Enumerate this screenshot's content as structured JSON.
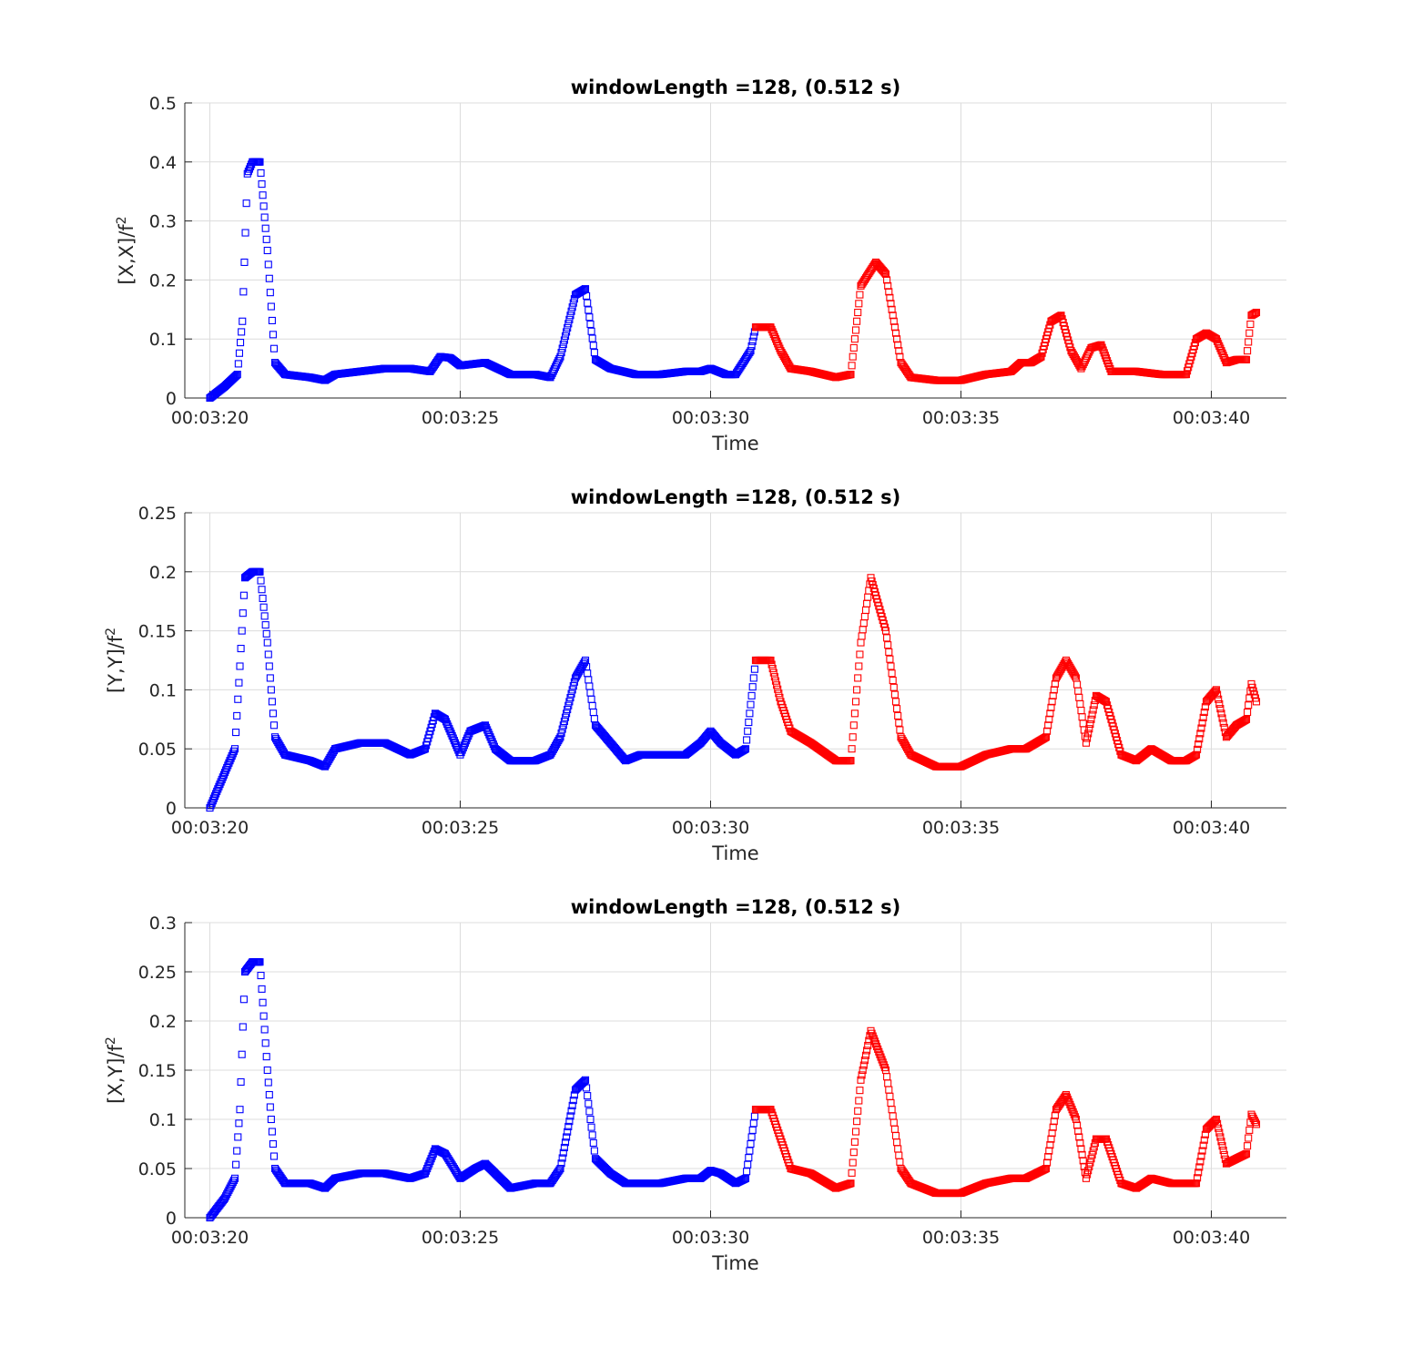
{
  "chart_data": [
    {
      "type": "scatter",
      "title": "windowLength =128, (0.512 s)",
      "xlabel": "Time",
      "ylabel": "[X,X]/f",
      "ylabel_sup": "2",
      "xlim": [
        "00:03:19.5",
        "00:03:41.5"
      ],
      "ylim": [
        0,
        0.5
      ],
      "xticks": [
        "00:03:20",
        "00:03:25",
        "00:03:30",
        "00:03:35",
        "00:03:40"
      ],
      "yticks": [
        "0",
        "0.1",
        "0.2",
        "0.3",
        "0.4",
        "0.5"
      ],
      "grid": true,
      "marker": "square",
      "series": [
        {
          "color": "#0000ff",
          "x": [
            "00:03:20.0",
            "00:03:20.3",
            "00:03:20.55",
            "00:03:20.65",
            "00:03:20.75",
            "00:03:20.85",
            "00:03:21.0",
            "00:03:21.15",
            "00:03:21.3",
            "00:03:21.5",
            "00:03:22.0",
            "00:03:22.3",
            "00:03:22.5",
            "00:03:23.0",
            "00:03:23.5",
            "00:03:24.0",
            "00:03:24.4",
            "00:03:24.6",
            "00:03:24.8",
            "00:03:25.0",
            "00:03:25.5",
            "00:03:26.0",
            "00:03:26.5",
            "00:03:26.8",
            "00:03:27.0",
            "00:03:27.3",
            "00:03:27.5",
            "00:03:27.7",
            "00:03:28.0",
            "00:03:28.5",
            "00:03:29.0",
            "00:03:29.5",
            "00:03:29.8",
            "00:03:30.0",
            "00:03:30.3",
            "00:03:30.5",
            "00:03:30.8",
            "00:03:30.9"
          ],
          "y": [
            0.0,
            0.02,
            0.04,
            0.13,
            0.38,
            0.4,
            0.4,
            0.25,
            0.06,
            0.04,
            0.035,
            0.03,
            0.04,
            0.045,
            0.05,
            0.05,
            0.045,
            0.07,
            0.068,
            0.055,
            0.06,
            0.04,
            0.04,
            0.035,
            0.07,
            0.175,
            0.185,
            0.065,
            0.05,
            0.04,
            0.04,
            0.045,
            0.045,
            0.05,
            0.04,
            0.04,
            0.08,
            0.12
          ]
        },
        {
          "color": "#ff0000",
          "x": [
            "00:03:30.9",
            "00:03:31.2",
            "00:03:31.4",
            "00:03:31.6",
            "00:03:32.0",
            "00:03:32.5",
            "00:03:32.8",
            "00:03:33.0",
            "00:03:33.3",
            "00:03:33.5",
            "00:03:33.8",
            "00:03:34.0",
            "00:03:34.5",
            "00:03:35.0",
            "00:03:35.5",
            "00:03:36.0",
            "00:03:36.2",
            "00:03:36.4",
            "00:03:36.6",
            "00:03:36.8",
            "00:03:37.0",
            "00:03:37.2",
            "00:03:37.4",
            "00:03:37.6",
            "00:03:37.8",
            "00:03:38.0",
            "00:03:38.5",
            "00:03:39.0",
            "00:03:39.5",
            "00:03:39.7",
            "00:03:39.9",
            "00:03:40.1",
            "00:03:40.3",
            "00:03:40.5",
            "00:03:40.7",
            "00:03:40.8",
            "00:03:40.9"
          ],
          "y": [
            0.12,
            0.12,
            0.08,
            0.05,
            0.045,
            0.035,
            0.04,
            0.19,
            0.23,
            0.21,
            0.06,
            0.035,
            0.03,
            0.03,
            0.04,
            0.045,
            0.06,
            0.06,
            0.07,
            0.13,
            0.14,
            0.08,
            0.05,
            0.085,
            0.09,
            0.045,
            0.045,
            0.04,
            0.04,
            0.1,
            0.11,
            0.1,
            0.06,
            0.065,
            0.065,
            0.14,
            0.145
          ]
        }
      ]
    },
    {
      "type": "scatter",
      "title": "windowLength =128, (0.512 s)",
      "xlabel": "Time",
      "ylabel": "[Y,Y]/f",
      "ylabel_sup": "2",
      "xlim": [
        "00:03:19.5",
        "00:03:41.5"
      ],
      "ylim": [
        0,
        0.25
      ],
      "xticks": [
        "00:03:20",
        "00:03:25",
        "00:03:30",
        "00:03:35",
        "00:03:40"
      ],
      "yticks": [
        "0",
        "0.05",
        "0.1",
        "0.15",
        "0.2",
        "0.25"
      ],
      "grid": true,
      "marker": "square",
      "series": [
        {
          "color": "#0000ff",
          "x": [
            "00:03:20.0",
            "00:03:20.3",
            "00:03:20.5",
            "00:03:20.6",
            "00:03:20.7",
            "00:03:20.85",
            "00:03:21.0",
            "00:03:21.15",
            "00:03:21.3",
            "00:03:21.5",
            "00:03:22.0",
            "00:03:22.3",
            "00:03:22.5",
            "00:03:23.0",
            "00:03:23.5",
            "00:03:24.0",
            "00:03:24.3",
            "00:03:24.5",
            "00:03:24.7",
            "00:03:25.0",
            "00:03:25.2",
            "00:03:25.5",
            "00:03:25.7",
            "00:03:26.0",
            "00:03:26.5",
            "00:03:26.8",
            "00:03:27.0",
            "00:03:27.3",
            "00:03:27.5",
            "00:03:27.7",
            "00:03:28.0",
            "00:03:28.3",
            "00:03:28.6",
            "00:03:29.0",
            "00:03:29.5",
            "00:03:29.8",
            "00:03:30.0",
            "00:03:30.2",
            "00:03:30.5",
            "00:03:30.7",
            "00:03:30.9"
          ],
          "y": [
            0.0,
            0.03,
            0.05,
            0.12,
            0.195,
            0.2,
            0.2,
            0.14,
            0.06,
            0.045,
            0.04,
            0.035,
            0.05,
            0.055,
            0.055,
            0.045,
            0.05,
            0.08,
            0.075,
            0.045,
            0.065,
            0.07,
            0.05,
            0.04,
            0.04,
            0.045,
            0.06,
            0.11,
            0.125,
            0.07,
            0.055,
            0.04,
            0.045,
            0.045,
            0.045,
            0.055,
            0.065,
            0.055,
            0.045,
            0.05,
            0.125
          ]
        },
        {
          "color": "#ff0000",
          "x": [
            "00:03:30.9",
            "00:03:31.2",
            "00:03:31.4",
            "00:03:31.6",
            "00:03:32.0",
            "00:03:32.5",
            "00:03:32.8",
            "00:03:33.0",
            "00:03:33.2",
            "00:03:33.5",
            "00:03:33.8",
            "00:03:34.0",
            "00:03:34.5",
            "00:03:35.0",
            "00:03:35.5",
            "00:03:36.0",
            "00:03:36.3",
            "00:03:36.5",
            "00:03:36.7",
            "00:03:36.9",
            "00:03:37.1",
            "00:03:37.3",
            "00:03:37.5",
            "00:03:37.7",
            "00:03:37.9",
            "00:03:38.2",
            "00:03:38.5",
            "00:03:38.8",
            "00:03:39.2",
            "00:03:39.5",
            "00:03:39.7",
            "00:03:39.9",
            "00:03:40.1",
            "00:03:40.3",
            "00:03:40.5",
            "00:03:40.7",
            "00:03:40.8",
            "00:03:40.9"
          ],
          "y": [
            0.125,
            0.125,
            0.09,
            0.065,
            0.055,
            0.04,
            0.04,
            0.14,
            0.195,
            0.15,
            0.06,
            0.045,
            0.035,
            0.035,
            0.045,
            0.05,
            0.05,
            0.055,
            0.06,
            0.11,
            0.125,
            0.11,
            0.055,
            0.095,
            0.09,
            0.045,
            0.04,
            0.05,
            0.04,
            0.04,
            0.045,
            0.09,
            0.1,
            0.06,
            0.07,
            0.075,
            0.105,
            0.09
          ]
        }
      ]
    },
    {
      "type": "scatter",
      "title": "windowLength =128, (0.512 s)",
      "xlabel": "Time",
      "ylabel": "[X,Y]/f",
      "ylabel_sup": "2",
      "xlim": [
        "00:03:19.5",
        "00:03:41.5"
      ],
      "ylim": [
        0,
        0.3
      ],
      "xticks": [
        "00:03:20",
        "00:03:25",
        "00:03:30",
        "00:03:35",
        "00:03:40"
      ],
      "yticks": [
        "0",
        "0.05",
        "0.1",
        "0.15",
        "0.2",
        "0.25",
        "0.3"
      ],
      "grid": true,
      "marker": "square",
      "series": [
        {
          "color": "#0000ff",
          "x": [
            "00:03:20.0",
            "00:03:20.3",
            "00:03:20.5",
            "00:03:20.6",
            "00:03:20.7",
            "00:03:20.85",
            "00:03:21.0",
            "00:03:21.15",
            "00:03:21.3",
            "00:03:21.5",
            "00:03:22.0",
            "00:03:22.3",
            "00:03:22.5",
            "00:03:23.0",
            "00:03:23.5",
            "00:03:24.0",
            "00:03:24.3",
            "00:03:24.5",
            "00:03:24.7",
            "00:03:25.0",
            "00:03:25.3",
            "00:03:25.5",
            "00:03:25.7",
            "00:03:26.0",
            "00:03:26.5",
            "00:03:26.8",
            "00:03:27.0",
            "00:03:27.3",
            "00:03:27.5",
            "00:03:27.7",
            "00:03:28.0",
            "00:03:28.3",
            "00:03:28.6",
            "00:03:29.0",
            "00:03:29.5",
            "00:03:29.8",
            "00:03:30.0",
            "00:03:30.2",
            "00:03:30.5",
            "00:03:30.7",
            "00:03:30.9"
          ],
          "y": [
            0.0,
            0.02,
            0.04,
            0.11,
            0.25,
            0.26,
            0.26,
            0.15,
            0.05,
            0.035,
            0.035,
            0.03,
            0.04,
            0.045,
            0.045,
            0.04,
            0.045,
            0.07,
            0.065,
            0.04,
            0.05,
            0.055,
            0.045,
            0.03,
            0.035,
            0.035,
            0.05,
            0.13,
            0.14,
            0.06,
            0.045,
            0.035,
            0.035,
            0.035,
            0.04,
            0.04,
            0.048,
            0.045,
            0.035,
            0.04,
            0.11
          ]
        },
        {
          "color": "#ff0000",
          "x": [
            "00:03:30.9",
            "00:03:31.2",
            "00:03:31.4",
            "00:03:31.6",
            "00:03:32.0",
            "00:03:32.5",
            "00:03:32.8",
            "00:03:33.0",
            "00:03:33.2",
            "00:03:33.5",
            "00:03:33.8",
            "00:03:34.0",
            "00:03:34.5",
            "00:03:35.0",
            "00:03:35.5",
            "00:03:36.0",
            "00:03:36.3",
            "00:03:36.5",
            "00:03:36.7",
            "00:03:36.9",
            "00:03:37.1",
            "00:03:37.3",
            "00:03:37.5",
            "00:03:37.7",
            "00:03:37.9",
            "00:03:38.2",
            "00:03:38.5",
            "00:03:38.8",
            "00:03:39.2",
            "00:03:39.5",
            "00:03:39.7",
            "00:03:39.9",
            "00:03:40.1",
            "00:03:40.3",
            "00:03:40.5",
            "00:03:40.7",
            "00:03:40.8",
            "00:03:40.9"
          ],
          "y": [
            0.11,
            0.11,
            0.08,
            0.05,
            0.045,
            0.03,
            0.035,
            0.14,
            0.19,
            0.15,
            0.05,
            0.035,
            0.025,
            0.025,
            0.035,
            0.04,
            0.04,
            0.045,
            0.05,
            0.11,
            0.125,
            0.1,
            0.04,
            0.08,
            0.08,
            0.035,
            0.03,
            0.04,
            0.035,
            0.035,
            0.035,
            0.09,
            0.1,
            0.055,
            0.06,
            0.065,
            0.105,
            0.095
          ]
        }
      ]
    }
  ]
}
